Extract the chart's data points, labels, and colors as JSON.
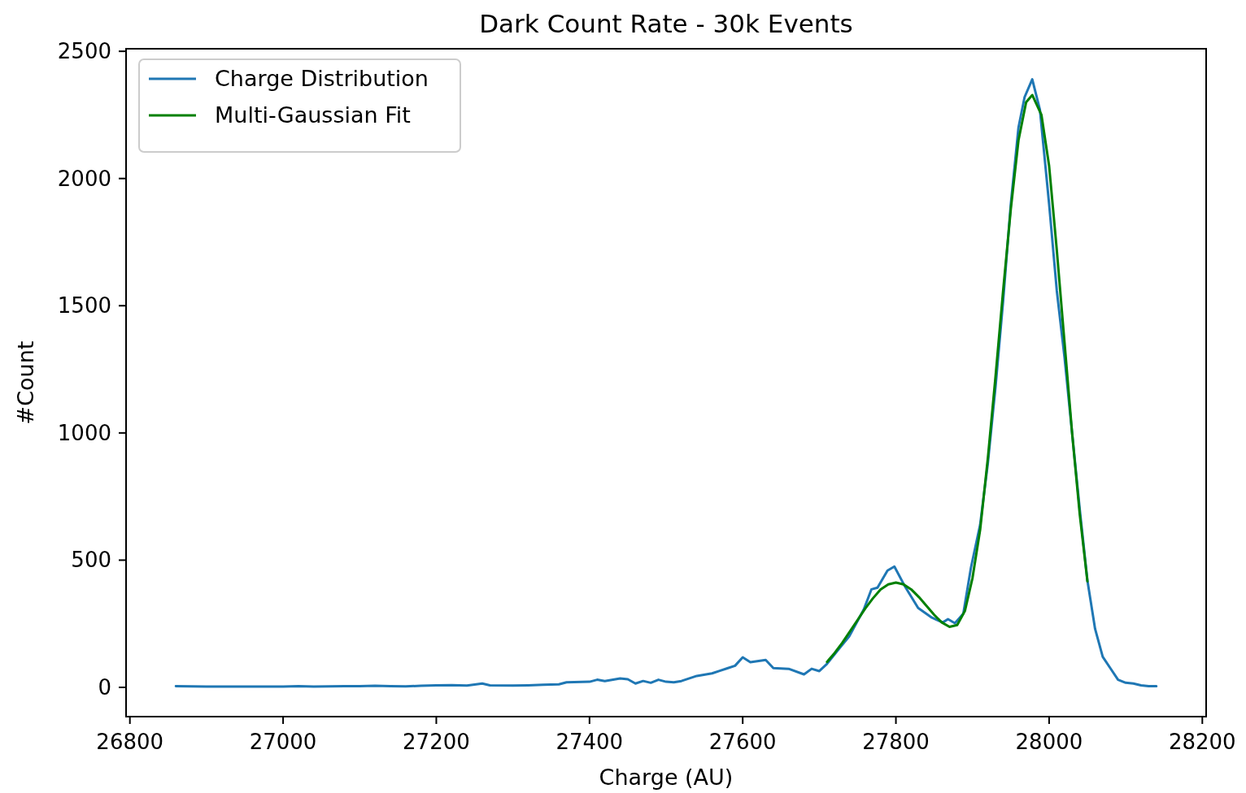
{
  "chart_data": {
    "type": "line",
    "title": "Dark Count Rate - 30k Events",
    "xlabel": "Charge (AU)",
    "ylabel": "#Count",
    "xlim": [
      26795,
      28205
    ],
    "xticks": [
      26800,
      27000,
      27200,
      27400,
      27600,
      27800,
      28000,
      28200
    ],
    "ylim": [
      -115,
      2510
    ],
    "yticks": [
      0,
      500,
      1000,
      1500,
      2000,
      2500
    ],
    "legend": "top left",
    "grid": false,
    "series": [
      {
        "name": "Charge Distribution",
        "color": "#1f77b4",
        "x": [
          26860,
          26900,
          26950,
          27000,
          27020,
          27040,
          27060,
          27080,
          27100,
          27120,
          27140,
          27160,
          27180,
          27200,
          27220,
          27240,
          27260,
          27270,
          27300,
          27320,
          27340,
          27360,
          27370,
          27400,
          27410,
          27420,
          27440,
          27450,
          27460,
          27470,
          27480,
          27490,
          27500,
          27510,
          27520,
          27540,
          27560,
          27570,
          27580,
          27590,
          27600,
          27610,
          27630,
          27640,
          27660,
          27680,
          27690,
          27700,
          27710,
          27727,
          27739,
          27758,
          27768,
          27776,
          27789,
          27798,
          27811,
          27829,
          27847,
          27861,
          27868,
          27877,
          27888,
          27898,
          27910,
          27920,
          27930,
          27940,
          27950,
          27960,
          27968,
          27978,
          27988,
          28000,
          28010,
          28020,
          28030,
          28040,
          28050,
          28060,
          28070,
          28080,
          28090,
          28100,
          28110,
          28120,
          28130,
          28140
        ],
        "values": [
          5,
          3,
          3,
          3,
          5,
          3,
          4,
          5,
          5,
          6,
          5,
          4,
          6,
          8,
          9,
          7,
          15,
          8,
          7,
          8,
          10,
          12,
          20,
          22,
          30,
          25,
          35,
          32,
          15,
          25,
          18,
          30,
          22,
          20,
          25,
          45,
          55,
          65,
          75,
          85,
          118,
          99,
          108,
          76,
          73,
          51,
          73,
          64,
          92,
          156,
          200,
          306,
          385,
          392,
          459,
          475,
          401,
          312,
          274,
          255,
          268,
          252,
          290,
          471,
          640,
          880,
          1180,
          1520,
          1900,
          2200,
          2320,
          2390,
          2270,
          1900,
          1560,
          1300,
          1000,
          700,
          420,
          230,
          120,
          75,
          30,
          18,
          15,
          8,
          5,
          5
        ]
      },
      {
        "name": "Multi-Gaussian Fit",
        "color": "#008000",
        "x": [
          27710,
          27720,
          27730,
          27740,
          27750,
          27760,
          27770,
          27780,
          27790,
          27800,
          27810,
          27820,
          27830,
          27840,
          27850,
          27860,
          27870,
          27880,
          27890,
          27900,
          27910,
          27920,
          27930,
          27940,
          27950,
          27960,
          27970,
          27978,
          27990,
          28000,
          28010,
          28020,
          28030,
          28040,
          28050
        ],
        "values": [
          100,
          135,
          175,
          220,
          265,
          310,
          350,
          385,
          405,
          412,
          405,
          385,
          355,
          320,
          285,
          255,
          238,
          245,
          300,
          430,
          620,
          900,
          1220,
          1560,
          1880,
          2150,
          2300,
          2328,
          2250,
          2050,
          1720,
          1360,
          1000,
          680,
          417
        ]
      }
    ]
  }
}
